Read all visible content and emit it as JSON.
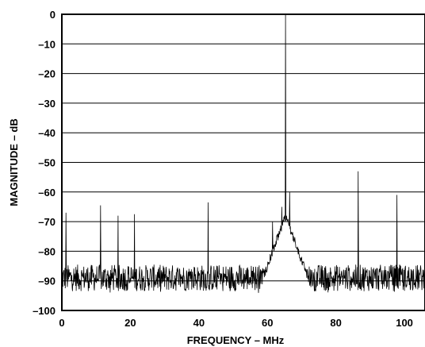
{
  "chart_data": {
    "type": "line",
    "xlabel": "FREQUENCY – MHz",
    "ylabel": "MAGNITUDE – dB",
    "xlim": [
      0,
      106
    ],
    "ylim": [
      -100,
      0
    ],
    "x_ticks": [
      0,
      20,
      40,
      60,
      80,
      100
    ],
    "x_tick_labels": [
      "0",
      "20",
      "40",
      "60",
      "80",
      "100"
    ],
    "y_ticks": [
      0,
      -10,
      -20,
      -30,
      -40,
      -50,
      -60,
      -70,
      -80,
      -90,
      -100
    ],
    "y_tick_labels": [
      "0",
      "–10",
      "–20",
      "–30",
      "–40",
      "–50",
      "–60",
      "–70",
      "–80",
      "–90",
      "–100"
    ],
    "grid": "horizontal",
    "line_color": "#000000",
    "series": [
      {
        "noise_floor_db": -89,
        "fundamental": {
          "x": 65.3,
          "y": 0
        },
        "spurs": [
          {
            "x": 1.2,
            "y": -67
          },
          {
            "x": 11.3,
            "y": -64.5
          },
          {
            "x": 16.4,
            "y": -68
          },
          {
            "x": 21.2,
            "y": -67.5
          },
          {
            "x": 42.7,
            "y": -63.5
          },
          {
            "x": 61.5,
            "y": -70
          },
          {
            "x": 64.2,
            "y": -65
          },
          {
            "x": 66.5,
            "y": -60
          },
          {
            "x": 86.5,
            "y": -53
          },
          {
            "x": 97.8,
            "y": -61
          }
        ]
      }
    ]
  }
}
